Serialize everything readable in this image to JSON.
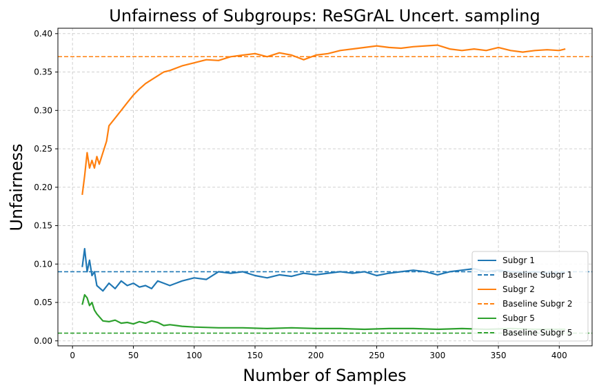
{
  "chart_data": {
    "type": "line",
    "title": "Unfairness of Subgroups: ReSGrAL Uncert. sampling",
    "xlabel": "Number of Samples",
    "ylabel": "Unfairness",
    "xlim": [
      -12,
      427
    ],
    "ylim": [
      -0.0065,
      0.407
    ],
    "x_ticks": [
      0,
      50,
      100,
      150,
      200,
      250,
      300,
      350,
      400
    ],
    "y_ticks": [
      0.0,
      0.05,
      0.1,
      0.15,
      0.2,
      0.25,
      0.3,
      0.35,
      0.4
    ],
    "x_tick_labels": [
      "0",
      "50",
      "100",
      "150",
      "200",
      "250",
      "300",
      "350",
      "400"
    ],
    "y_tick_labels": [
      "0.00",
      "0.05",
      "0.10",
      "0.15",
      "0.20",
      "0.25",
      "0.30",
      "0.35",
      "0.40"
    ],
    "grid": true,
    "legend_position": "bottom-right",
    "series": [
      {
        "name": "Subgr 1",
        "color": "#1f77b4",
        "style": "solid",
        "x": [
          8,
          10,
          12,
          14,
          16,
          18,
          20,
          25,
          30,
          35,
          40,
          45,
          50,
          55,
          60,
          65,
          70,
          75,
          80,
          90,
          100,
          110,
          120,
          130,
          140,
          150,
          160,
          170,
          180,
          190,
          200,
          210,
          220,
          230,
          240,
          250,
          260,
          270,
          280,
          290,
          300,
          310,
          320,
          330,
          340,
          350,
          360,
          370,
          380,
          390,
          400,
          405
        ],
        "y": [
          0.096,
          0.12,
          0.09,
          0.105,
          0.085,
          0.09,
          0.072,
          0.065,
          0.075,
          0.068,
          0.078,
          0.072,
          0.075,
          0.07,
          0.072,
          0.068,
          0.078,
          0.075,
          0.072,
          0.078,
          0.082,
          0.08,
          0.09,
          0.088,
          0.09,
          0.085,
          0.082,
          0.086,
          0.084,
          0.088,
          0.086,
          0.088,
          0.09,
          0.088,
          0.09,
          0.085,
          0.088,
          0.09,
          0.092,
          0.09,
          0.086,
          0.09,
          0.092,
          0.094,
          0.09,
          0.092,
          0.09,
          0.089,
          0.09,
          0.088,
          0.088,
          0.089
        ]
      },
      {
        "name": "Baseline Subgr 1",
        "color": "#1f77b4",
        "style": "dashed",
        "value": 0.09
      },
      {
        "name": "Subgr 2",
        "color": "#ff7f0e",
        "style": "solid",
        "x": [
          8,
          10,
          12,
          14,
          16,
          18,
          20,
          22,
          25,
          28,
          30,
          35,
          40,
          45,
          50,
          55,
          60,
          65,
          70,
          75,
          80,
          90,
          100,
          110,
          120,
          130,
          140,
          150,
          160,
          170,
          180,
          190,
          200,
          210,
          220,
          230,
          240,
          250,
          260,
          270,
          280,
          290,
          300,
          310,
          320,
          330,
          340,
          350,
          360,
          370,
          380,
          390,
          400,
          405
        ],
        "y": [
          0.19,
          0.215,
          0.245,
          0.225,
          0.235,
          0.225,
          0.24,
          0.23,
          0.245,
          0.26,
          0.28,
          0.29,
          0.3,
          0.31,
          0.32,
          0.328,
          0.335,
          0.34,
          0.345,
          0.35,
          0.352,
          0.358,
          0.362,
          0.366,
          0.365,
          0.37,
          0.372,
          0.374,
          0.37,
          0.375,
          0.372,
          0.366,
          0.372,
          0.374,
          0.378,
          0.38,
          0.382,
          0.384,
          0.382,
          0.381,
          0.383,
          0.384,
          0.385,
          0.38,
          0.378,
          0.38,
          0.378,
          0.382,
          0.378,
          0.376,
          0.378,
          0.379,
          0.378,
          0.38
        ]
      },
      {
        "name": "Baseline Subgr 2",
        "color": "#ff7f0e",
        "style": "dashed",
        "value": 0.37
      },
      {
        "name": "Subgr 5",
        "color": "#2ca02c",
        "style": "solid",
        "x": [
          8,
          10,
          12,
          14,
          16,
          18,
          20,
          25,
          30,
          35,
          40,
          45,
          50,
          55,
          60,
          65,
          70,
          75,
          80,
          90,
          100,
          120,
          140,
          160,
          180,
          200,
          220,
          240,
          260,
          280,
          300,
          320,
          340,
          360,
          380,
          400,
          405
        ],
        "y": [
          0.047,
          0.06,
          0.056,
          0.046,
          0.05,
          0.04,
          0.035,
          0.026,
          0.025,
          0.027,
          0.023,
          0.024,
          0.022,
          0.025,
          0.023,
          0.026,
          0.024,
          0.02,
          0.021,
          0.019,
          0.018,
          0.017,
          0.017,
          0.016,
          0.017,
          0.016,
          0.016,
          0.015,
          0.016,
          0.016,
          0.015,
          0.016,
          0.015,
          0.016,
          0.015,
          0.015,
          0.015
        ]
      },
      {
        "name": "Baseline Subgr 5",
        "color": "#2ca02c",
        "style": "dashed",
        "value": 0.01
      }
    ]
  }
}
